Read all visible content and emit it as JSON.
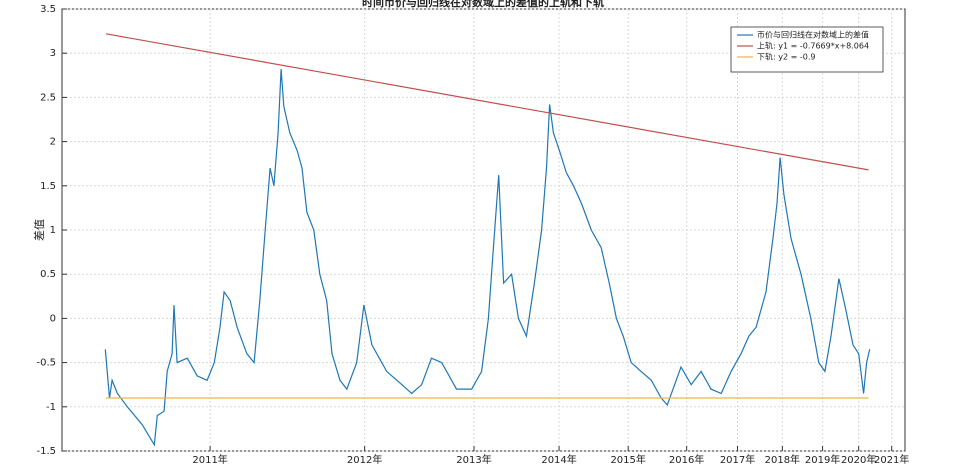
{
  "chart_data": {
    "type": "line",
    "title": "时间币价与回归线在对数域上的差值的上轨和下轨",
    "y_label": "差值",
    "xlim": [
      6.2,
      8.42
    ],
    "ylim": [
      -1.5,
      3.5
    ],
    "xticks": [
      {
        "value": 6.59,
        "label": "2011年"
      },
      {
        "value": 6.997,
        "label": "2012年"
      },
      {
        "value": 7.285,
        "label": "2013年"
      },
      {
        "value": 7.509,
        "label": "2014年"
      },
      {
        "value": 7.691,
        "label": "2015年"
      },
      {
        "value": 7.845,
        "label": "2016年"
      },
      {
        "value": 7.979,
        "label": "2017年"
      },
      {
        "value": 8.097,
        "label": "2018年"
      },
      {
        "value": 8.203,
        "label": "2019年"
      },
      {
        "value": 8.298,
        "label": "2020年"
      },
      {
        "value": 8.385,
        "label": "2021年"
      }
    ],
    "yticks": [
      -1.5,
      -1,
      -0.5,
      0,
      0.5,
      1,
      1.5,
      2,
      2.5,
      3,
      3.5
    ],
    "grid": true,
    "legend": "northeast",
    "series": [
      {
        "name": "币价与回归线在对数域上的差值",
        "color": "#1f77b4",
        "x": [
          6.314,
          6.325,
          6.332,
          6.346,
          6.372,
          6.411,
          6.443,
          6.451,
          6.469,
          6.477,
          6.49,
          6.495,
          6.503,
          6.53,
          6.556,
          6.582,
          6.601,
          6.616,
          6.627,
          6.643,
          6.661,
          6.687,
          6.706,
          6.721,
          6.735,
          6.748,
          6.758,
          6.769,
          6.777,
          6.784,
          6.8,
          6.819,
          6.832,
          6.845,
          6.863,
          6.879,
          6.897,
          6.911,
          6.932,
          6.95,
          6.976,
          6.995,
          7.016,
          7.055,
          7.095,
          7.121,
          7.147,
          7.173,
          7.2,
          7.239,
          7.279,
          7.305,
          7.323,
          7.336,
          7.35,
          7.363,
          7.384,
          7.402,
          7.423,
          7.444,
          7.463,
          7.476,
          7.484,
          7.494,
          7.51,
          7.528,
          7.547,
          7.568,
          7.594,
          7.62,
          7.641,
          7.66,
          7.678,
          7.699,
          7.725,
          7.752,
          7.778,
          7.794,
          7.809,
          7.83,
          7.857,
          7.883,
          7.909,
          7.936,
          7.962,
          7.988,
          8.009,
          8.028,
          8.054,
          8.072,
          8.083,
          8.091,
          8.101,
          8.12,
          8.146,
          8.172,
          8.193,
          8.209,
          8.225,
          8.246,
          8.264,
          8.283,
          8.298,
          8.311,
          8.319,
          8.327
        ],
        "values": [
          -0.35,
          -0.9,
          -0.7,
          -0.85,
          -1.0,
          -1.2,
          -1.43,
          -1.1,
          -1.05,
          -0.6,
          -0.4,
          0.15,
          -0.5,
          -0.45,
          -0.65,
          -0.7,
          -0.5,
          -0.1,
          0.3,
          0.2,
          -0.1,
          -0.4,
          -0.5,
          0.2,
          1.0,
          1.7,
          1.5,
          2.1,
          2.82,
          2.4,
          2.1,
          1.9,
          1.7,
          1.2,
          1.0,
          0.5,
          0.2,
          -0.4,
          -0.7,
          -0.8,
          -0.5,
          0.15,
          -0.3,
          -0.6,
          -0.75,
          -0.85,
          -0.75,
          -0.45,
          -0.5,
          -0.8,
          -0.8,
          -0.6,
          0.0,
          0.8,
          1.62,
          0.4,
          0.5,
          0.0,
          -0.2,
          0.4,
          1.0,
          1.7,
          2.42,
          2.1,
          1.9,
          1.65,
          1.5,
          1.3,
          1.0,
          0.8,
          0.4,
          0.0,
          -0.2,
          -0.5,
          -0.6,
          -0.7,
          -0.9,
          -0.98,
          -0.8,
          -0.55,
          -0.75,
          -0.6,
          -0.8,
          -0.85,
          -0.6,
          -0.4,
          -0.2,
          -0.1,
          0.3,
          0.9,
          1.3,
          1.82,
          1.4,
          0.9,
          0.5,
          0.0,
          -0.5,
          -0.6,
          -0.2,
          0.45,
          0.1,
          -0.3,
          -0.4,
          -0.85,
          -0.5,
          -0.35
        ]
      },
      {
        "name": "上轨: y1 = -0.7669*x+8.064",
        "color": "#c0504d",
        "x": [
          6.316,
          8.324
        ],
        "values": [
          3.22,
          1.68
        ]
      },
      {
        "name": "下轨: y2 = -0.9",
        "color": "#e8b84a",
        "x": [
          6.316,
          8.324
        ],
        "values": [
          -0.9,
          -0.9
        ]
      }
    ]
  }
}
